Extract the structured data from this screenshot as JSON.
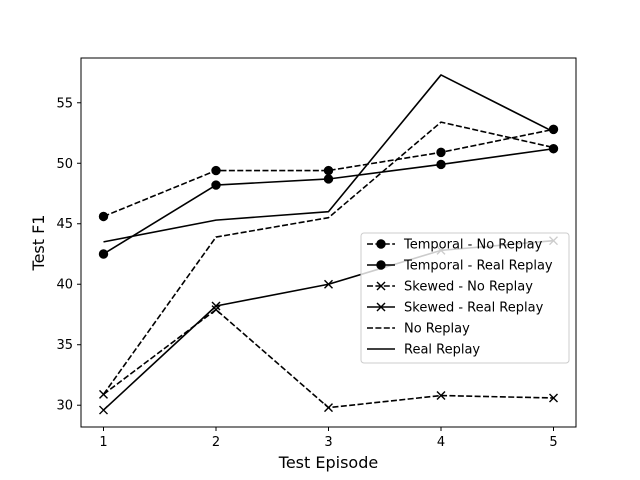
{
  "chart_data": {
    "type": "line",
    "title": "",
    "xlabel": "Test Episode",
    "ylabel": "Test F1",
    "x": [
      1,
      2,
      3,
      4,
      5
    ],
    "xticks": [
      1,
      2,
      3,
      4,
      5
    ],
    "yticks": [
      30,
      35,
      40,
      45,
      50,
      55
    ],
    "xlim": [
      0.8,
      5.2
    ],
    "ylim": [
      28.2,
      58.7
    ],
    "grid": false,
    "legend_position": "center-right",
    "series": [
      {
        "name": "Temporal - No Replay",
        "values": [
          45.6,
          49.4,
          49.4,
          50.9,
          52.8
        ],
        "linestyle": "dashed",
        "marker": "circle",
        "color": "#000000"
      },
      {
        "name": "Temporal - Real Replay",
        "values": [
          42.5,
          48.2,
          48.7,
          49.9,
          51.2
        ],
        "linestyle": "solid",
        "marker": "circle",
        "color": "#000000"
      },
      {
        "name": "Skewed - No Replay",
        "values": [
          30.9,
          37.9,
          29.8,
          30.8,
          30.6
        ],
        "linestyle": "dashed",
        "marker": "x",
        "color": "#000000"
      },
      {
        "name": "Skewed - Real Replay",
        "values": [
          29.6,
          38.2,
          40.0,
          42.8,
          43.6
        ],
        "linestyle": "solid",
        "marker": "x",
        "color": "#000000"
      },
      {
        "name": "No Replay",
        "values": [
          30.9,
          43.9,
          45.5,
          53.4,
          51.3
        ],
        "linestyle": "dashed",
        "marker": "none",
        "color": "#000000"
      },
      {
        "name": "Real Replay",
        "values": [
          43.5,
          45.3,
          46.0,
          57.3,
          52.6
        ],
        "linestyle": "solid",
        "marker": "none",
        "color": "#000000"
      }
    ]
  }
}
